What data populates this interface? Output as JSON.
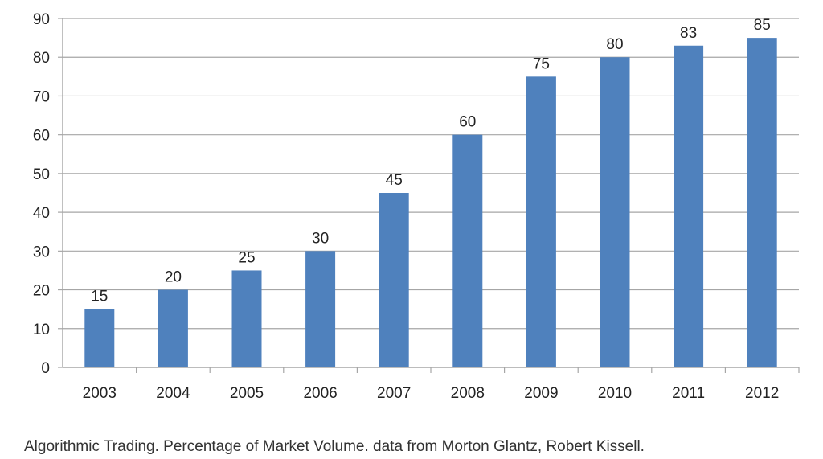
{
  "chart_data": {
    "type": "bar",
    "categories": [
      "2003",
      "2004",
      "2005",
      "2006",
      "2007",
      "2008",
      "2009",
      "2010",
      "2011",
      "2012"
    ],
    "values": [
      15,
      20,
      25,
      30,
      45,
      60,
      75,
      80,
      83,
      85
    ],
    "data_labels": [
      "15",
      "20",
      "25",
      "30",
      "45",
      "60",
      "75",
      "80",
      "83",
      "85"
    ],
    "ylim": [
      0,
      90
    ],
    "y_ticks": [
      0,
      10,
      20,
      30,
      40,
      50,
      60,
      70,
      80,
      90
    ],
    "grid": true,
    "legend": "none",
    "colors": {
      "bar": "#4f81bd",
      "grid": "#a6a6a6",
      "axis": "#a6a6a6"
    }
  },
  "caption": "Algorithmic Trading. Percentage of Market Volume. data from Morton Glantz, Robert Kissell."
}
